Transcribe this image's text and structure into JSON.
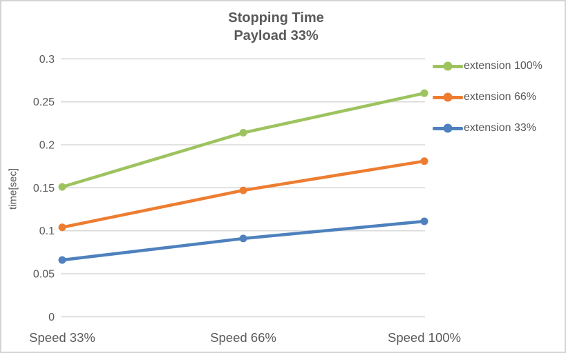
{
  "window": {
    "background": "#ffffff",
    "border_color": "#d4d4d4",
    "text_color": "#595959"
  },
  "chart_data": {
    "type": "line",
    "title": "Stopping Time",
    "subtitle": "Payload 33%",
    "xlabel": "",
    "ylabel": "time[sec]",
    "categories": [
      "Speed 33%",
      "Speed 66%",
      "Speed 100%"
    ],
    "series": [
      {
        "name": "extension 100%",
        "color": "#9DC35F",
        "values": [
          0.151,
          0.214,
          0.26
        ]
      },
      {
        "name": "extension 66%",
        "color": "#ED7D31",
        "values": [
          0.104,
          0.147,
          0.181
        ]
      },
      {
        "name": "extension 33%",
        "color": "#4E81BD",
        "values": [
          0.066,
          0.091,
          0.111
        ]
      }
    ],
    "ylim": [
      0,
      0.3
    ],
    "yticks": [
      0,
      0.05,
      0.1,
      0.15,
      0.2,
      0.25,
      0.3
    ],
    "ytick_labels": [
      "0",
      "0.05",
      "0.1",
      "0.15",
      "0.2",
      "0.25",
      "0.3"
    ],
    "grid": true,
    "gridline_color": "#D9D9D9",
    "legend_position": "right",
    "marker_style": "circle"
  }
}
